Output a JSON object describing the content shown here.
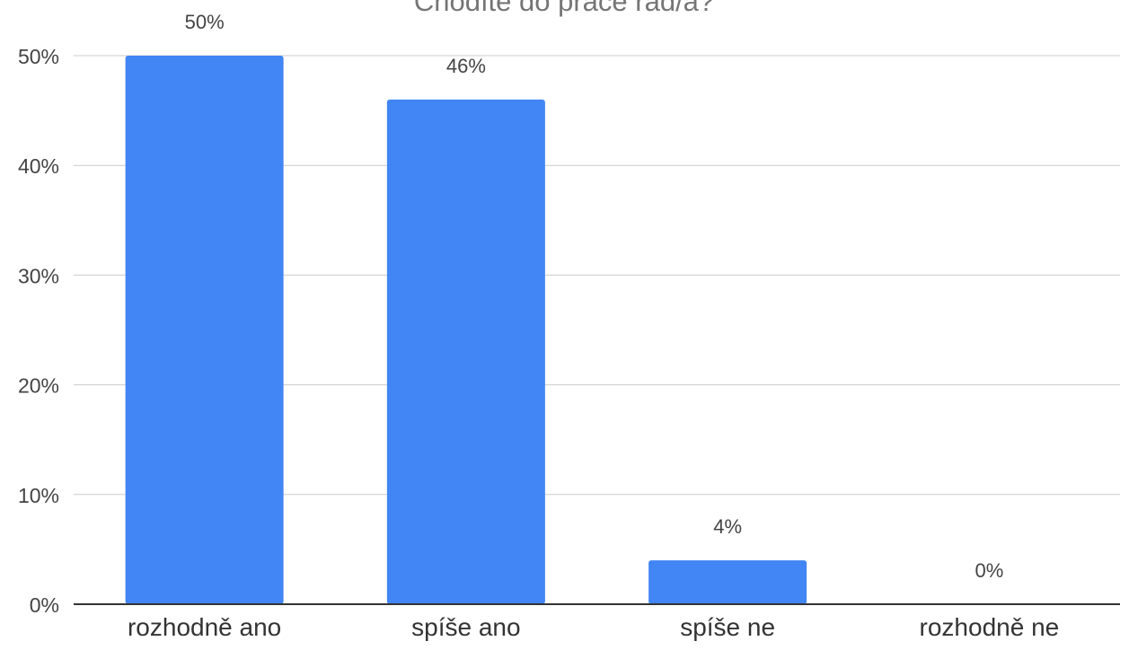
{
  "chart_data": {
    "type": "bar",
    "title": "Chodíte do práce rád/a?",
    "categories": [
      "rozhodně ano",
      "spíše ano",
      "spíše ne",
      "rozhodně ne"
    ],
    "values": [
      50,
      46,
      4,
      0
    ],
    "value_labels": [
      "50%",
      "46%",
      "4%",
      "0%"
    ],
    "ylim": [
      0,
      50
    ],
    "yticks": [
      0,
      10,
      20,
      30,
      40,
      50
    ],
    "ytick_labels": [
      "0%",
      "10%",
      "20%",
      "30%",
      "40%",
      "50%"
    ],
    "xlabel": "",
    "ylabel": "",
    "grid": true,
    "legend": "none",
    "colors": {
      "bar": "#4285f4",
      "grid": "#cccccc",
      "axis": "#333333",
      "title": "#757575",
      "text": "#444444"
    }
  }
}
